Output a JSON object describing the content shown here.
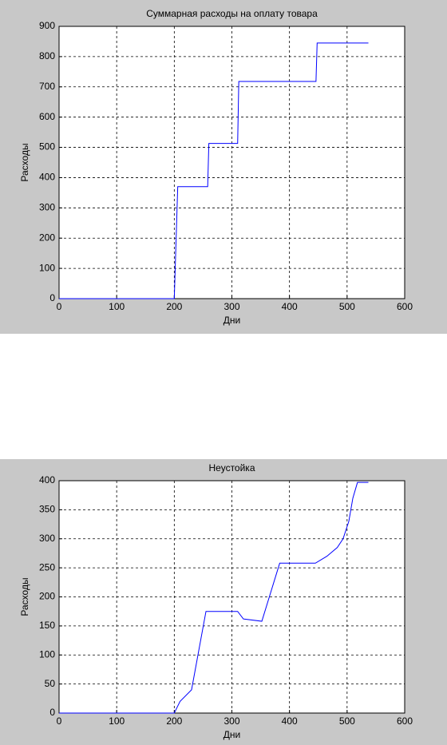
{
  "chart_data": [
    {
      "type": "line",
      "title": "Суммарная расходы на оплату товара",
      "xlabel": "Дни",
      "ylabel": "Расходы",
      "x": [
        0,
        200,
        206,
        258,
        260,
        310,
        312,
        446,
        448,
        537
      ],
      "values": [
        0,
        0,
        370,
        370,
        513,
        513,
        718,
        718,
        845,
        845
      ],
      "color": "#0000ff",
      "grid": true,
      "xlim": [
        0,
        600
      ],
      "xticks": [
        0,
        100,
        200,
        300,
        400,
        500,
        600
      ],
      "ylim": [
        0,
        900
      ],
      "yticks": [
        0,
        100,
        200,
        300,
        400,
        500,
        600,
        700,
        800,
        900
      ]
    },
    {
      "type": "line",
      "title": "Неустойка",
      "xlabel": "Дни",
      "ylabel": "Расходы",
      "x": [
        0,
        200,
        210,
        230,
        255,
        310,
        320,
        352,
        383,
        445,
        465,
        483,
        493,
        503,
        510,
        518,
        537
      ],
      "values": [
        0,
        0,
        20,
        40,
        175,
        175,
        162,
        158,
        258,
        258,
        270,
        285,
        300,
        330,
        370,
        397,
        397
      ],
      "color": "#0000ff",
      "grid": true,
      "xlim": [
        0,
        600
      ],
      "xticks": [
        0,
        100,
        200,
        300,
        400,
        500,
        600
      ],
      "ylim": [
        0,
        400
      ],
      "yticks": [
        0,
        50,
        100,
        150,
        200,
        250,
        300,
        350,
        400
      ]
    }
  ]
}
